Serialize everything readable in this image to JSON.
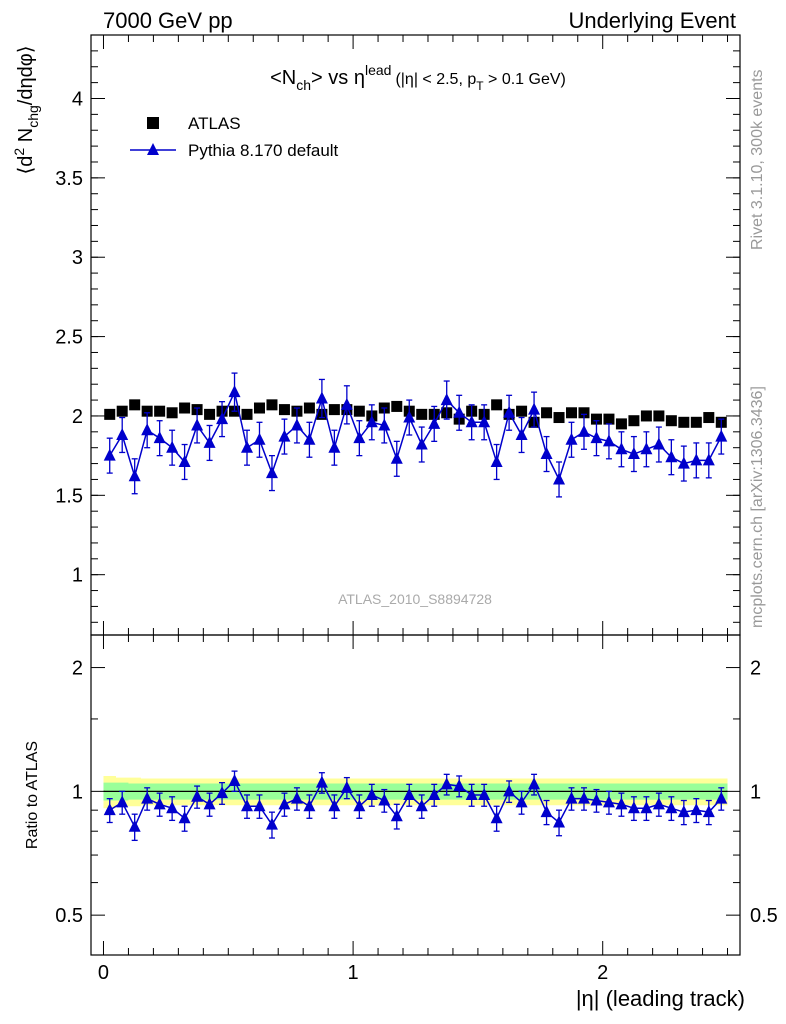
{
  "header": {
    "left": "7000 GeV pp",
    "right": "Underlying Event"
  },
  "side": {
    "rivet": "Rivet 3.1.10,  300k events",
    "mcplots": "mcplots.cern.ch [arXiv:1306.3436]"
  },
  "watermark": "ATLAS_2010_S8894728",
  "colors": {
    "data": "#000000",
    "mc": "#0000cc",
    "band_inner": "#99ff99",
    "band_outer": "#ffff99"
  },
  "chart_data": [
    {
      "type": "scatter",
      "title": "<N_ch> vs η^lead (|η| < 2.5, p_T > 0.1 GeV)",
      "title_parts": {
        "main": "<N",
        "main_sub": "ch",
        "main2": "> vs η",
        "main_sup": "lead",
        "cond": "(|η| < 2.5, p",
        "cond_sub": "T",
        "cond2": " > 0.1 GeV)"
      },
      "ylabel": "⟨d² N_chg/dηdφ⟩",
      "ylabel_parts": {
        "a": "⟨d",
        "sup": "2",
        "b": " N",
        "sub": "chg",
        "c": "/dηdφ⟩"
      },
      "xlim": [
        -0.05,
        2.55
      ],
      "ylim": [
        0.62,
        4.4
      ],
      "yticks": [
        1,
        1.5,
        2,
        2.5,
        3,
        3.5,
        4
      ],
      "ytick_labels": [
        "1",
        "1.5",
        "2",
        "2.5",
        "3",
        "3.5",
        "4"
      ],
      "legend_position": "top-left",
      "series": [
        {
          "name": "ATLAS",
          "marker": "square",
          "x": [
            0.025,
            0.075,
            0.125,
            0.175,
            0.225,
            0.275,
            0.325,
            0.375,
            0.425,
            0.475,
            0.525,
            0.575,
            0.625,
            0.675,
            0.725,
            0.775,
            0.825,
            0.875,
            0.925,
            0.975,
            1.025,
            1.075,
            1.125,
            1.175,
            1.225,
            1.275,
            1.325,
            1.375,
            1.425,
            1.475,
            1.525,
            1.575,
            1.625,
            1.675,
            1.725,
            1.775,
            1.825,
            1.875,
            1.925,
            1.975,
            2.025,
            2.075,
            2.125,
            2.175,
            2.225,
            2.275,
            2.325,
            2.375,
            2.425,
            2.475
          ],
          "y": [
            2.01,
            2.03,
            2.07,
            2.03,
            2.03,
            2.02,
            2.05,
            2.04,
            2.01,
            2.03,
            2.03,
            2.01,
            2.05,
            2.07,
            2.04,
            2.03,
            2.05,
            2.01,
            2.04,
            2.04,
            2.03,
            2.0,
            2.05,
            2.06,
            2.03,
            2.01,
            2.01,
            2.02,
            1.98,
            2.03,
            2.01,
            2.07,
            2.01,
            2.03,
            1.96,
            2.02,
            1.99,
            2.02,
            2.02,
            1.98,
            1.98,
            1.95,
            1.97,
            2.0,
            2.0,
            1.97,
            1.96,
            1.96,
            1.99,
            1.96
          ],
          "yerr": [
            0.03,
            0.03,
            0.03,
            0.03,
            0.03,
            0.03,
            0.03,
            0.03,
            0.03,
            0.03,
            0.03,
            0.03,
            0.03,
            0.03,
            0.03,
            0.03,
            0.03,
            0.03,
            0.03,
            0.03,
            0.03,
            0.03,
            0.03,
            0.03,
            0.03,
            0.03,
            0.03,
            0.03,
            0.03,
            0.03,
            0.03,
            0.03,
            0.03,
            0.03,
            0.03,
            0.03,
            0.03,
            0.03,
            0.03,
            0.03,
            0.03,
            0.03,
            0.03,
            0.03,
            0.03,
            0.03,
            0.03,
            0.03,
            0.03,
            0.03
          ]
        },
        {
          "name": "Pythia 8.170 default",
          "marker": "triangle",
          "x": [
            0.025,
            0.075,
            0.125,
            0.175,
            0.225,
            0.275,
            0.325,
            0.375,
            0.425,
            0.475,
            0.525,
            0.575,
            0.625,
            0.675,
            0.725,
            0.775,
            0.825,
            0.875,
            0.925,
            0.975,
            1.025,
            1.075,
            1.125,
            1.175,
            1.225,
            1.275,
            1.325,
            1.375,
            1.425,
            1.475,
            1.525,
            1.575,
            1.625,
            1.675,
            1.725,
            1.775,
            1.825,
            1.875,
            1.925,
            1.975,
            2.025,
            2.075,
            2.125,
            2.175,
            2.225,
            2.275,
            2.325,
            2.375,
            2.425,
            2.475
          ],
          "y": [
            1.75,
            1.88,
            1.62,
            1.91,
            1.86,
            1.8,
            1.71,
            1.94,
            1.83,
            1.98,
            2.15,
            1.8,
            1.85,
            1.64,
            1.87,
            1.94,
            1.85,
            2.11,
            1.8,
            2.07,
            1.86,
            1.96,
            1.94,
            1.73,
            1.99,
            1.82,
            1.95,
            2.1,
            2.02,
            1.96,
            1.96,
            1.71,
            2.02,
            1.88,
            2.04,
            1.76,
            1.6,
            1.85,
            1.9,
            1.86,
            1.84,
            1.79,
            1.76,
            1.79,
            1.82,
            1.74,
            1.7,
            1.72,
            1.72,
            1.87
          ],
          "yerr": [
            0.11,
            0.11,
            0.11,
            0.11,
            0.11,
            0.11,
            0.11,
            0.11,
            0.11,
            0.11,
            0.12,
            0.11,
            0.11,
            0.11,
            0.11,
            0.11,
            0.11,
            0.12,
            0.11,
            0.12,
            0.11,
            0.11,
            0.11,
            0.11,
            0.11,
            0.11,
            0.11,
            0.12,
            0.11,
            0.11,
            0.11,
            0.11,
            0.11,
            0.11,
            0.11,
            0.11,
            0.11,
            0.11,
            0.11,
            0.11,
            0.11,
            0.11,
            0.11,
            0.11,
            0.11,
            0.11,
            0.11,
            0.11,
            0.11,
            0.11
          ]
        }
      ]
    },
    {
      "type": "scatter",
      "ylabel": "Ratio to ATLAS",
      "xlabel": "|η| (leading track)",
      "xlim": [
        -0.05,
        2.55
      ],
      "ylim": [
        0.4,
        2.4
      ],
      "ylog": true,
      "xticks": [
        0,
        1,
        2
      ],
      "xtick_labels": [
        "0",
        "1",
        "2"
      ],
      "yticks": [
        0.5,
        1,
        2
      ],
      "ytick_labels": [
        "0.5",
        "1",
        "2"
      ],
      "reference_line": 1,
      "band_inner_halfwidth": [
        0.05,
        0.05,
        0.045,
        0.045,
        0.045,
        0.045,
        0.045,
        0.045,
        0.045,
        0.045,
        0.045,
        0.045,
        0.045,
        0.045,
        0.045,
        0.045,
        0.045,
        0.045,
        0.045,
        0.045,
        0.045,
        0.045,
        0.045,
        0.045,
        0.045,
        0.045,
        0.045,
        0.045,
        0.045,
        0.045,
        0.045,
        0.045,
        0.045,
        0.045,
        0.045,
        0.045,
        0.045,
        0.045,
        0.045,
        0.045,
        0.045,
        0.045,
        0.045,
        0.045,
        0.045,
        0.045,
        0.045,
        0.045,
        0.045,
        0.045
      ],
      "band_outer_halfwidth": [
        0.09,
        0.08,
        0.08,
        0.075,
        0.075,
        0.075,
        0.075,
        0.075,
        0.075,
        0.075,
        0.075,
        0.075,
        0.075,
        0.075,
        0.075,
        0.075,
        0.075,
        0.075,
        0.075,
        0.075,
        0.075,
        0.075,
        0.075,
        0.075,
        0.075,
        0.075,
        0.075,
        0.075,
        0.075,
        0.075,
        0.075,
        0.075,
        0.075,
        0.075,
        0.075,
        0.075,
        0.075,
        0.075,
        0.075,
        0.075,
        0.075,
        0.075,
        0.075,
        0.075,
        0.075,
        0.075,
        0.075,
        0.075,
        0.075,
        0.075
      ],
      "series": [
        {
          "name": "Pythia 8.170 default",
          "marker": "triangle",
          "x": [
            0.025,
            0.075,
            0.125,
            0.175,
            0.225,
            0.275,
            0.325,
            0.375,
            0.425,
            0.475,
            0.525,
            0.575,
            0.625,
            0.675,
            0.725,
            0.775,
            0.825,
            0.875,
            0.925,
            0.975,
            1.025,
            1.075,
            1.125,
            1.175,
            1.225,
            1.275,
            1.325,
            1.375,
            1.425,
            1.475,
            1.525,
            1.575,
            1.625,
            1.675,
            1.725,
            1.775,
            1.825,
            1.875,
            1.925,
            1.975,
            2.025,
            2.075,
            2.125,
            2.175,
            2.225,
            2.275,
            2.325,
            2.375,
            2.425,
            2.475
          ],
          "y": [
            0.9,
            0.94,
            0.82,
            0.96,
            0.93,
            0.91,
            0.86,
            0.97,
            0.93,
            0.99,
            1.06,
            0.92,
            0.92,
            0.83,
            0.93,
            0.96,
            0.92,
            1.05,
            0.92,
            1.02,
            0.92,
            0.98,
            0.95,
            0.87,
            0.98,
            0.92,
            0.98,
            1.04,
            1.03,
            0.98,
            0.98,
            0.86,
            1.0,
            0.94,
            1.04,
            0.89,
            0.84,
            0.96,
            0.96,
            0.95,
            0.94,
            0.93,
            0.91,
            0.91,
            0.93,
            0.91,
            0.89,
            0.9,
            0.89,
            0.96
          ],
          "yerr": [
            0.06,
            0.06,
            0.06,
            0.06,
            0.06,
            0.06,
            0.06,
            0.06,
            0.06,
            0.06,
            0.06,
            0.06,
            0.06,
            0.06,
            0.06,
            0.06,
            0.06,
            0.06,
            0.06,
            0.06,
            0.06,
            0.06,
            0.06,
            0.06,
            0.06,
            0.06,
            0.06,
            0.06,
            0.06,
            0.06,
            0.06,
            0.06,
            0.06,
            0.06,
            0.06,
            0.06,
            0.06,
            0.06,
            0.06,
            0.06,
            0.06,
            0.06,
            0.06,
            0.06,
            0.06,
            0.06,
            0.06,
            0.06,
            0.06,
            0.06
          ]
        }
      ]
    }
  ]
}
